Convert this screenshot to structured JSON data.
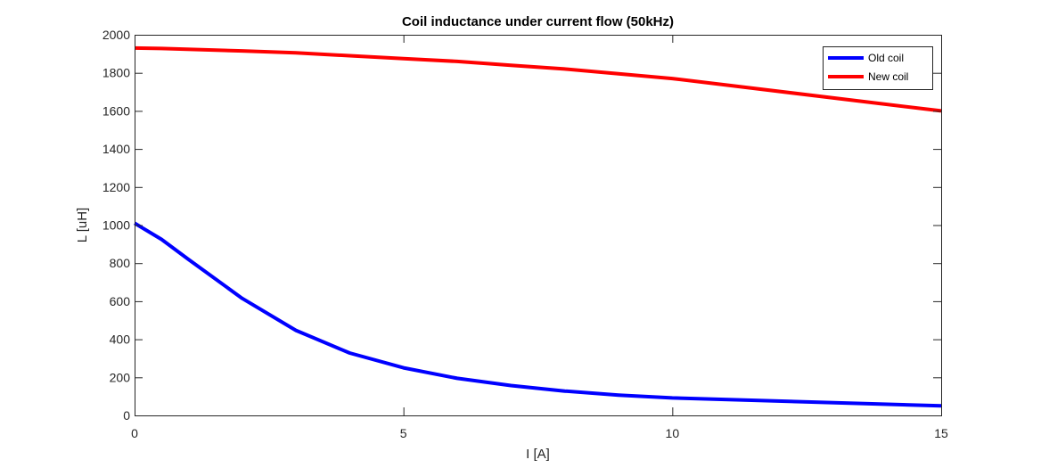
{
  "chart_data": {
    "type": "line",
    "title": "Coil inductance under current flow (50kHz)",
    "xlabel": "I [A]",
    "ylabel": "L [uH]",
    "xlim": [
      0,
      15
    ],
    "ylim": [
      0,
      2000
    ],
    "xticks": [
      0,
      5,
      10,
      15
    ],
    "yticks": [
      0,
      200,
      400,
      600,
      800,
      1000,
      1200,
      1400,
      1600,
      1800,
      2000
    ],
    "grid": false,
    "box": true,
    "legend_position": "top-right",
    "series": [
      {
        "name": "Old coil",
        "color": "#0000ff",
        "x": [
          0,
          0.5,
          1,
          2,
          3,
          4,
          5,
          6,
          7,
          8,
          9,
          10,
          15
        ],
        "y": [
          1010,
          925,
          820,
          615,
          447,
          328,
          250,
          195,
          157,
          128,
          107,
          92,
          50
        ]
      },
      {
        "name": "New coil",
        "color": "#ff0000",
        "x": [
          0,
          0.5,
          2,
          3,
          4,
          5,
          6,
          7,
          8,
          9,
          10,
          15
        ],
        "y": [
          1930,
          1928,
          1915,
          1905,
          1890,
          1875,
          1860,
          1840,
          1820,
          1795,
          1770,
          1600
        ]
      }
    ]
  }
}
